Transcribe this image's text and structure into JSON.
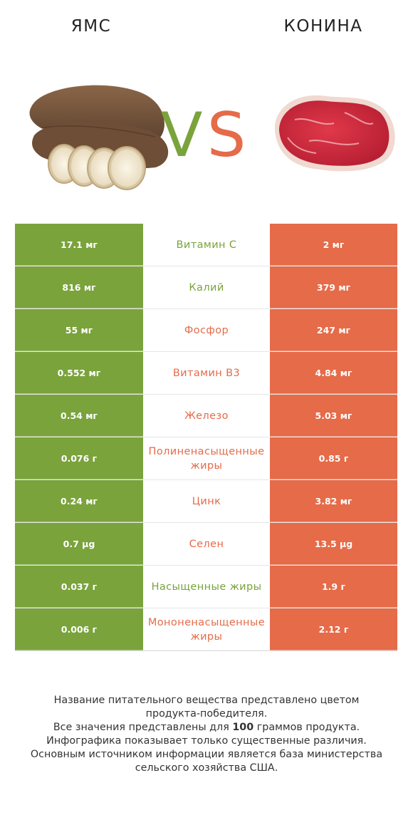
{
  "header": {
    "left_food": "ЯМС",
    "right_food": "КОНИНА",
    "vs_v": "V",
    "vs_s": "S"
  },
  "colors": {
    "left": "#7aa33c",
    "right": "#e56b49"
  },
  "images": {
    "left": "yam-image",
    "right": "horse-meat-image"
  },
  "rows": [
    {
      "left": "17.1 мг",
      "nutrient": "Витамин C",
      "right": "2 мг",
      "winner": "left"
    },
    {
      "left": "816 мг",
      "nutrient": "Калий",
      "right": "379 мг",
      "winner": "left"
    },
    {
      "left": "55 мг",
      "nutrient": "Фосфор",
      "right": "247 мг",
      "winner": "right"
    },
    {
      "left": "0.552 мг",
      "nutrient": "Витамин B3",
      "right": "4.84 мг",
      "winner": "right"
    },
    {
      "left": "0.54 мг",
      "nutrient": "Железо",
      "right": "5.03 мг",
      "winner": "right"
    },
    {
      "left": "0.076 г",
      "nutrient": "Полиненасыщенные жиры",
      "right": "0.85 г",
      "winner": "right"
    },
    {
      "left": "0.24 мг",
      "nutrient": "Цинк",
      "right": "3.82 мг",
      "winner": "right"
    },
    {
      "left": "0.7 µg",
      "nutrient": "Селен",
      "right": "13.5 µg",
      "winner": "right"
    },
    {
      "left": "0.037 г",
      "nutrient": "Насыщенные жиры",
      "right": "1.9 г",
      "winner": "left"
    },
    {
      "left": "0.006 г",
      "nutrient": "Мононенасыщенные жиры",
      "right": "2.12 г",
      "winner": "right"
    }
  ],
  "footnote": {
    "line1": "Название питательного вещества представлено цветом",
    "line2": "продукта-победителя.",
    "line3_pre": "Все значения представлены для ",
    "line3_bold": "100",
    "line3_post": " граммов продукта.",
    "line4": "Инфографика показывает только существенные различия.",
    "line5": "Основным источником информации является база министерства",
    "line6": "сельского хозяйства США."
  }
}
